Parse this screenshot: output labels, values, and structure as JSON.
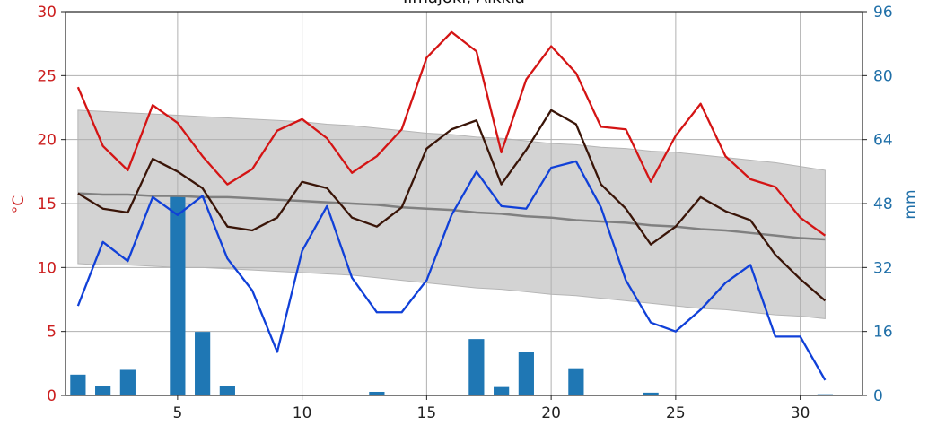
{
  "chart_data": {
    "type": "line",
    "title": "Ilmajoki, Alkkia",
    "ylabel": "°C",
    "y2label": "mm",
    "x": [
      1,
      2,
      3,
      4,
      5,
      6,
      7,
      8,
      9,
      10,
      11,
      12,
      13,
      14,
      15,
      16,
      17,
      18,
      19,
      20,
      21,
      22,
      23,
      24,
      25,
      26,
      27,
      28,
      29,
      30,
      31
    ],
    "xlim": [
      0.5,
      32.5
    ],
    "xticks": [
      5,
      10,
      15,
      20,
      25,
      30
    ],
    "ylim": [
      0,
      30
    ],
    "yticks": [
      0,
      5,
      10,
      15,
      20,
      25,
      30
    ],
    "y2lim": [
      0,
      96
    ],
    "y2ticks": [
      0,
      16,
      32,
      48,
      64,
      80,
      96
    ],
    "grid": true,
    "colors": {
      "tmax": "#d41414",
      "tmean": "#3a1508",
      "tmin": "#1040d8",
      "normal": "#808080",
      "band": "#d3d3d3",
      "precip": "#1f77b4",
      "left_axis": "#cc1f1f",
      "right_axis": "#1f6fa8"
    },
    "series": [
      {
        "key": "tmax",
        "axis": "left",
        "values": [
          24.1,
          19.5,
          17.6,
          22.7,
          21.3,
          18.7,
          16.5,
          17.7,
          20.7,
          21.6,
          20.1,
          17.4,
          18.7,
          20.8,
          26.4,
          28.4,
          26.9,
          19.0,
          24.7,
          27.3,
          25.2,
          21.0,
          20.8,
          16.7,
          20.3,
          22.8,
          18.7,
          16.9,
          16.3,
          13.9,
          12.5
        ]
      },
      {
        "key": "tmean",
        "axis": "left",
        "values": [
          15.8,
          14.6,
          14.3,
          18.5,
          17.5,
          16.2,
          13.2,
          12.9,
          13.9,
          16.7,
          16.2,
          13.9,
          13.2,
          14.7,
          19.3,
          20.8,
          21.5,
          16.5,
          19.2,
          22.3,
          21.2,
          16.5,
          14.6,
          11.8,
          13.2,
          15.5,
          14.4,
          13.7,
          11.0,
          9.1,
          7.4
        ]
      },
      {
        "key": "tmin",
        "axis": "left",
        "values": [
          7.0,
          12.0,
          10.5,
          15.5,
          14.1,
          15.6,
          10.7,
          8.2,
          3.4,
          11.3,
          14.8,
          9.2,
          6.5,
          6.5,
          9.0,
          14.1,
          17.5,
          14.8,
          14.6,
          17.8,
          18.3,
          14.7,
          9.0,
          5.7,
          5.0,
          6.7,
          8.8,
          10.2,
          4.6,
          4.6,
          1.2
        ]
      },
      {
        "key": "normal",
        "axis": "left",
        "values": [
          15.8,
          15.7,
          15.7,
          15.6,
          15.6,
          15.5,
          15.5,
          15.4,
          15.3,
          15.2,
          15.1,
          15.0,
          14.9,
          14.7,
          14.6,
          14.5,
          14.3,
          14.2,
          14.0,
          13.9,
          13.7,
          13.6,
          13.5,
          13.3,
          13.2,
          13.0,
          12.9,
          12.7,
          12.5,
          12.3,
          12.2
        ]
      },
      {
        "key": "band_upper",
        "axis": "left",
        "values": [
          22.3,
          22.2,
          22.1,
          22.0,
          21.9,
          21.8,
          21.7,
          21.6,
          21.5,
          21.4,
          21.2,
          21.1,
          20.9,
          20.7,
          20.5,
          20.4,
          20.2,
          20.1,
          19.9,
          19.7,
          19.6,
          19.4,
          19.3,
          19.1,
          19.0,
          18.8,
          18.6,
          18.4,
          18.2,
          17.9,
          17.6
        ]
      },
      {
        "key": "band_lower",
        "axis": "left",
        "values": [
          10.3,
          10.2,
          10.2,
          10.1,
          10.0,
          10.0,
          9.9,
          9.8,
          9.7,
          9.6,
          9.5,
          9.4,
          9.2,
          9.0,
          8.8,
          8.6,
          8.4,
          8.3,
          8.1,
          7.9,
          7.8,
          7.6,
          7.4,
          7.2,
          7.0,
          6.8,
          6.7,
          6.5,
          6.3,
          6.2,
          6.0
        ]
      },
      {
        "key": "precip",
        "axis": "right",
        "type": "bar",
        "values": [
          5.2,
          2.3,
          6.4,
          0,
          50.0,
          15.9,
          2.4,
          0,
          0,
          0,
          0,
          0,
          0.9,
          0,
          0,
          0,
          14.1,
          2.1,
          10.8,
          0,
          6.8,
          0,
          0,
          0.7,
          0,
          0,
          0,
          0,
          0,
          0,
          0.3
        ]
      }
    ]
  }
}
